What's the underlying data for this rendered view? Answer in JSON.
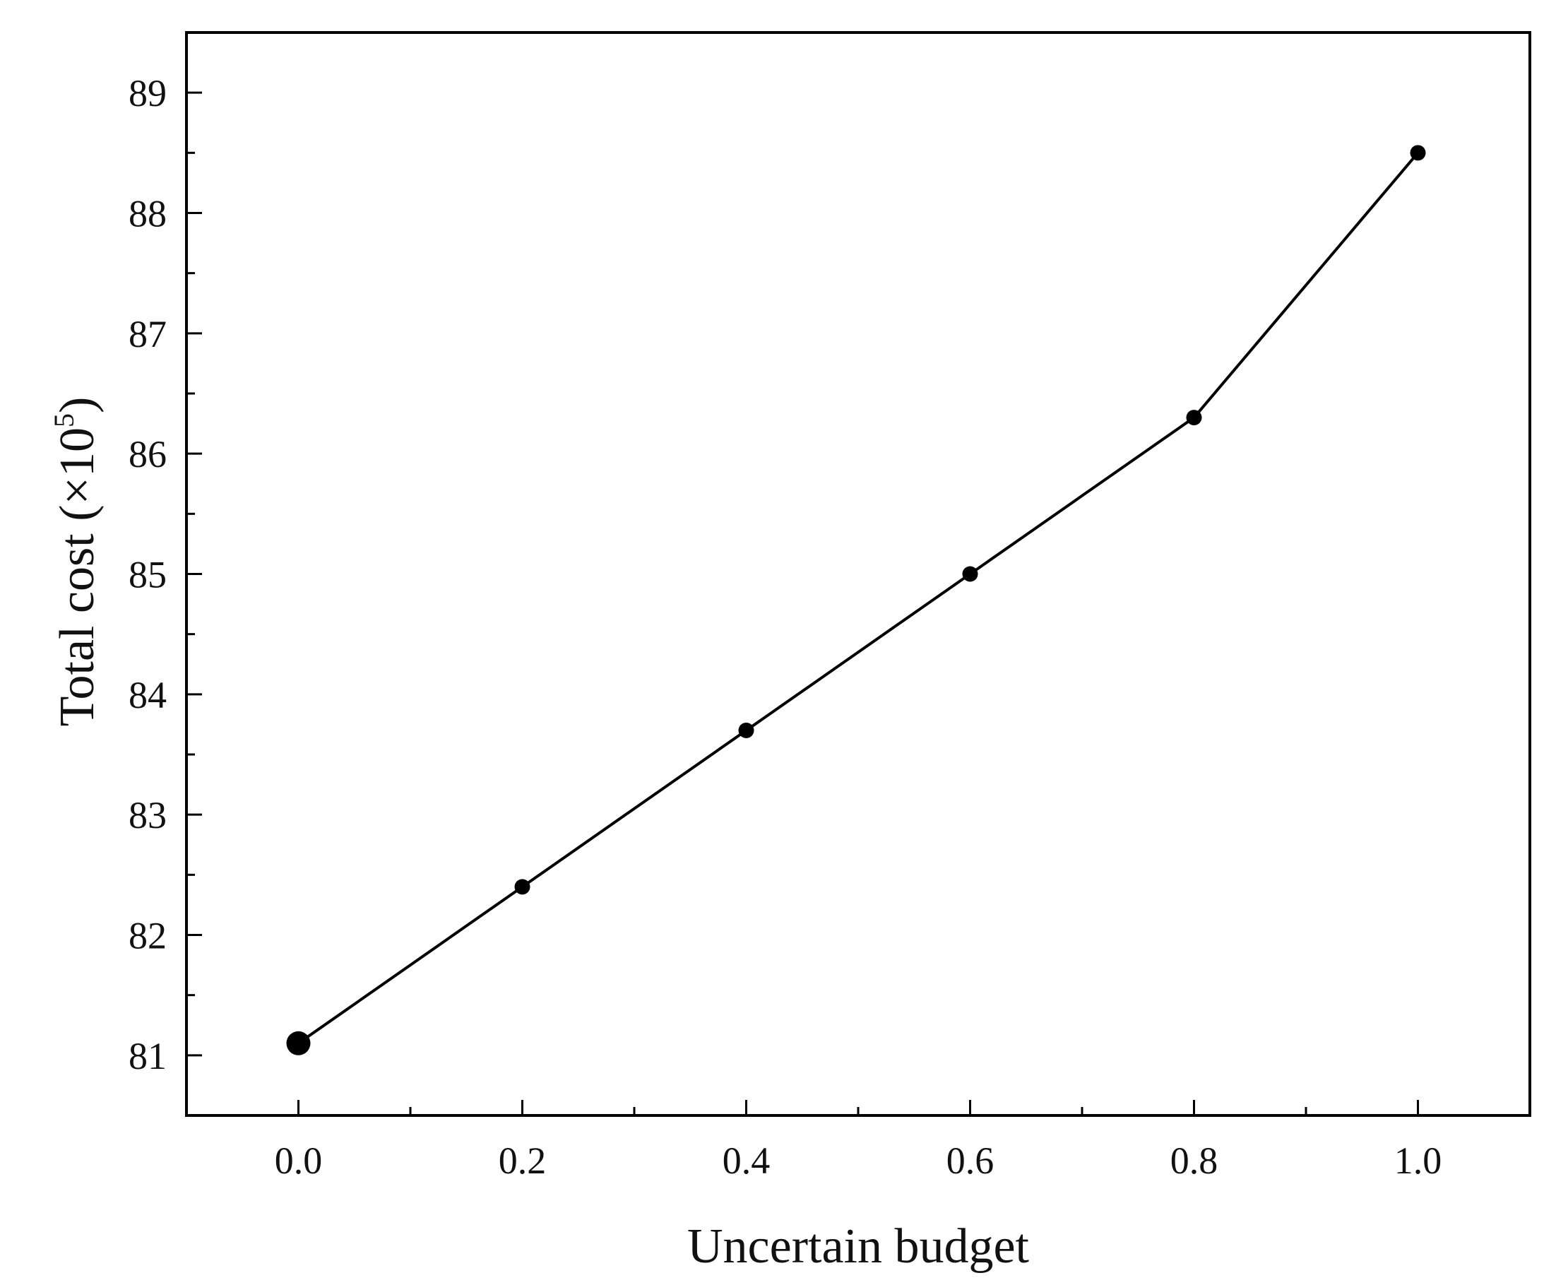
{
  "chart_data": {
    "type": "line",
    "title": "",
    "xlabel": "Uncertain budget",
    "ylabel": {
      "prefix": "Total cost (×10",
      "superscript": "5",
      "suffix": ")"
    },
    "x": [
      0.0,
      0.2,
      0.4,
      0.6,
      0.8,
      1.0
    ],
    "series": [
      {
        "values": [
          81.1,
          82.4,
          83.7,
          85.0,
          86.3,
          88.5
        ],
        "color": "#000000",
        "marker": "circle"
      }
    ],
    "xlim": [
      -0.1,
      1.1
    ],
    "ylim": [
      80.5,
      89.5
    ],
    "xticks": [
      0.0,
      0.2,
      0.4,
      0.6,
      0.8,
      1.0
    ],
    "xtick_labels": [
      "0.0",
      "0.2",
      "0.4",
      "0.6",
      "0.8",
      "1.0"
    ],
    "yticks": [
      81,
      82,
      83,
      84,
      85,
      86,
      87,
      88,
      89
    ],
    "ytick_labels": [
      "81",
      "82",
      "83",
      "84",
      "85",
      "86",
      "87",
      "88",
      "89"
    ],
    "x_minor_ticks": [
      0.1,
      0.3,
      0.5,
      0.7,
      0.9
    ],
    "y_minor_ticks": [
      81.5,
      82.5,
      83.5,
      84.5,
      85.5,
      86.5,
      87.5,
      88.5
    ],
    "grid": false,
    "legend": "none"
  }
}
